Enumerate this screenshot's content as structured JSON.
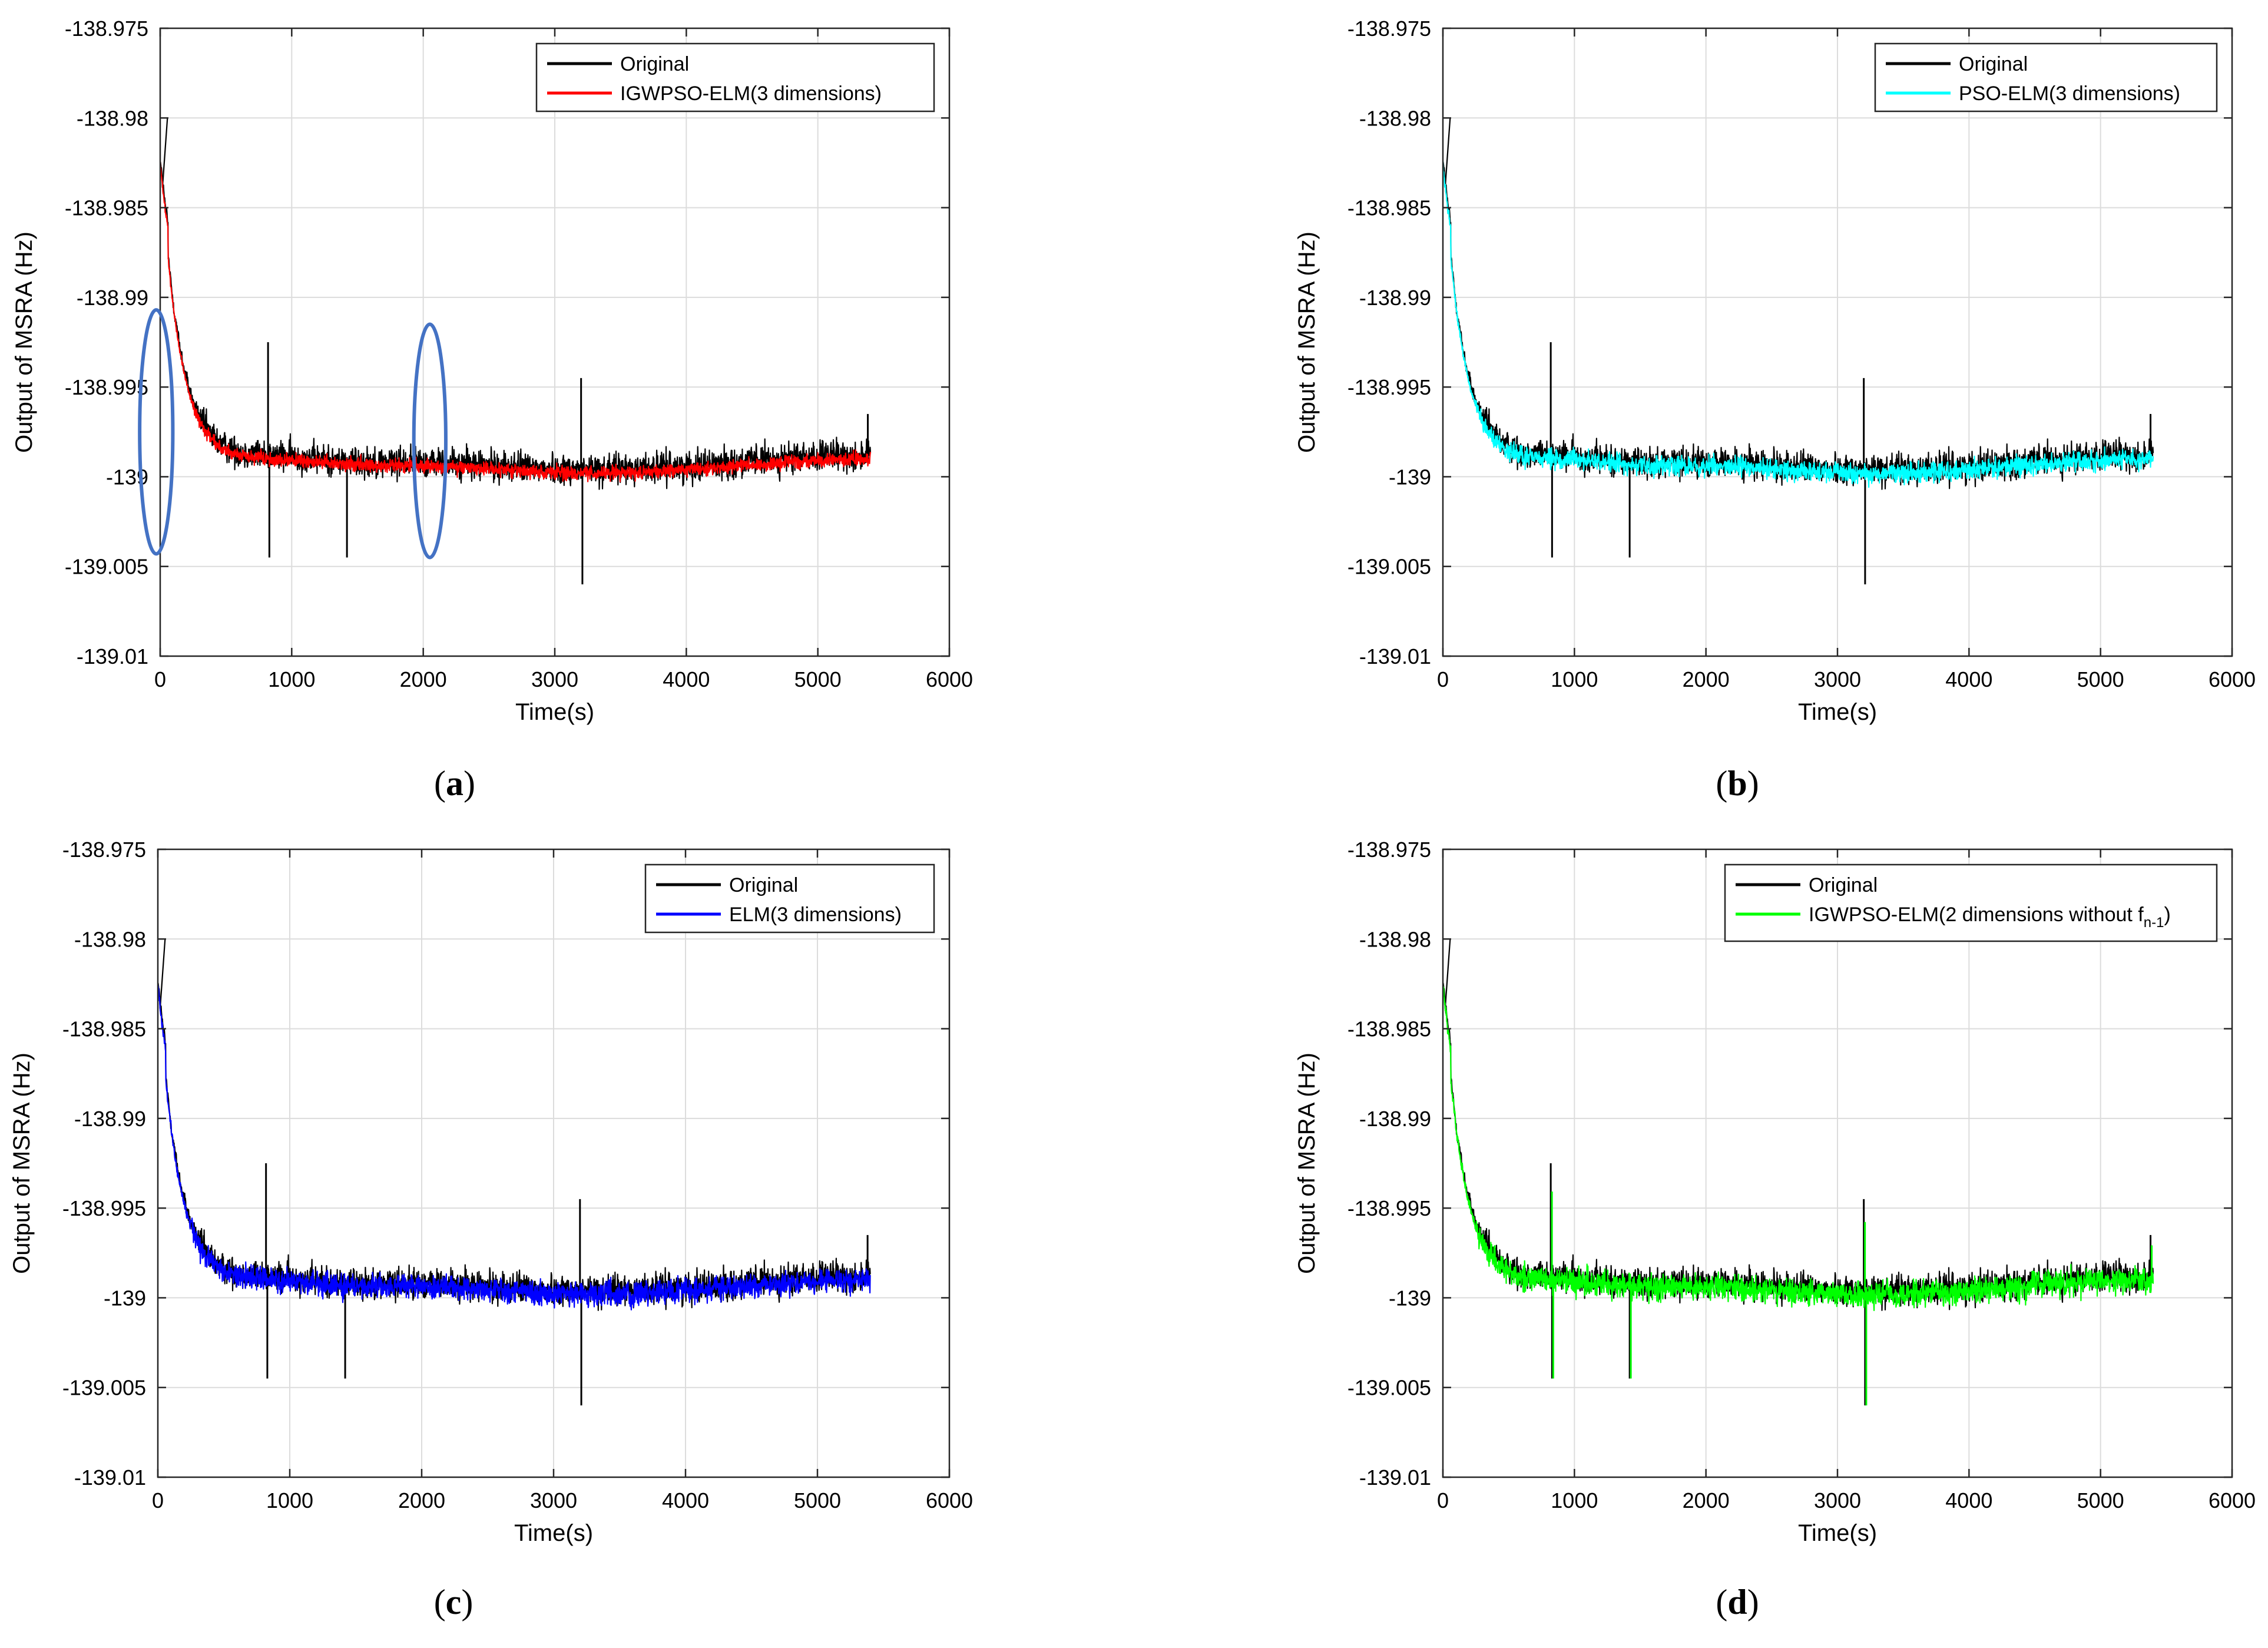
{
  "colors": {
    "original": "#000000",
    "grid": "#dcdcdc",
    "axis": "#262626",
    "annotation": "#4472c4"
  },
  "chart_data": [
    {
      "type": "line",
      "panel": "a",
      "caption_letter": "a",
      "title": "",
      "xlabel": "Time(s)",
      "ylabel": "Output of MSRA (Hz)",
      "xlim": [
        0,
        6000
      ],
      "ylim": [
        -139.01,
        -138.975
      ],
      "xticks": [
        0,
        1000,
        2000,
        3000,
        4000,
        5000,
        6000
      ],
      "xtick_labels": [
        "0",
        "1000",
        "2000",
        "3000",
        "4000",
        "5000",
        "6000"
      ],
      "yticks": [
        -138.975,
        -138.98,
        -138.985,
        -138.99,
        -138.995,
        -139,
        -139.005,
        -139.01
      ],
      "ytick_labels": [
        "-138.975",
        "-138.98",
        "-138.985",
        "-138.99",
        "-138.995",
        "-139",
        "-139.005",
        "-139.01"
      ],
      "grid": true,
      "legend_position": "top-right",
      "series": [
        {
          "name": "Original",
          "color": "#000000",
          "kind": "original"
        },
        {
          "name": "IGWPSO-ELM(3 dimensions)",
          "color": "#ff0000",
          "kind": "model",
          "band": 0.00065
        }
      ],
      "annotations": [
        {
          "shape": "ellipse",
          "center": [
            -30,
            -138.9975
          ],
          "half_width": 280,
          "half_height": 0.0068
        },
        {
          "shape": "ellipse",
          "center": [
            2050,
            -138.998
          ],
          "half_width": 270,
          "half_height": 0.0065
        }
      ]
    },
    {
      "type": "line",
      "panel": "b",
      "caption_letter": "b",
      "title": "",
      "xlabel": "Time(s)",
      "ylabel": "Output of MSRA (Hz)",
      "xlim": [
        0,
        6000
      ],
      "ylim": [
        -139.01,
        -138.975
      ],
      "xticks": [
        0,
        1000,
        2000,
        3000,
        4000,
        5000,
        6000
      ],
      "xtick_labels": [
        "0",
        "1000",
        "2000",
        "3000",
        "4000",
        "5000",
        "6000"
      ],
      "yticks": [
        -138.975,
        -138.98,
        -138.985,
        -138.99,
        -138.995,
        -139,
        -139.005,
        -139.01
      ],
      "ytick_labels": [
        "-138.975",
        "-138.98",
        "-138.985",
        "-138.99",
        "-138.995",
        "-139",
        "-139.005",
        "-139.01"
      ],
      "grid": true,
      "legend_position": "top-right",
      "series": [
        {
          "name": "Original",
          "color": "#000000",
          "kind": "original"
        },
        {
          "name": "PSO-ELM(3 dimensions)",
          "color": "#00ffff",
          "kind": "model",
          "band": 0.0009
        }
      ],
      "annotations": []
    },
    {
      "type": "line",
      "panel": "c",
      "caption_letter": "c",
      "title": "",
      "xlabel": "Time(s)",
      "ylabel": "Output of MSRA (Hz)",
      "xlim": [
        0,
        6000
      ],
      "ylim": [
        -139.01,
        -138.975
      ],
      "xticks": [
        0,
        1000,
        2000,
        3000,
        4000,
        5000,
        6000
      ],
      "xtick_labels": [
        "0",
        "1000",
        "2000",
        "3000",
        "4000",
        "5000",
        "6000"
      ],
      "yticks": [
        -138.975,
        -138.98,
        -138.985,
        -138.99,
        -138.995,
        -139,
        -139.005,
        -139.01
      ],
      "ytick_labels": [
        "-138.975",
        "-138.98",
        "-138.985",
        "-138.99",
        "-138.995",
        "-139",
        "-139.005",
        "-139.01"
      ],
      "grid": true,
      "legend_position": "top-right",
      "series": [
        {
          "name": "Original",
          "color": "#000000",
          "kind": "original"
        },
        {
          "name": "ELM(3 dimensions)",
          "color": "#0000ff",
          "kind": "model",
          "band": 0.0011
        }
      ],
      "annotations": []
    },
    {
      "type": "line",
      "panel": "d",
      "caption_letter": "d",
      "title": "",
      "xlabel": "Time(s)",
      "ylabel": "Output of MSRA (Hz)",
      "xlim": [
        0,
        6000
      ],
      "ylim": [
        -139.01,
        -138.975
      ],
      "xticks": [
        0,
        1000,
        2000,
        3000,
        4000,
        5000,
        6000
      ],
      "xtick_labels": [
        "0",
        "1000",
        "2000",
        "3000",
        "4000",
        "5000",
        "6000"
      ],
      "yticks": [
        -138.975,
        -138.98,
        -138.985,
        -138.99,
        -138.995,
        -139,
        -139.005,
        -139.01
      ],
      "ytick_labels": [
        "-138.975",
        "-138.98",
        "-138.985",
        "-138.99",
        "-138.995",
        "-139",
        "-139.005",
        "-139.01"
      ],
      "grid": true,
      "legend_position": "top-right",
      "series": [
        {
          "name": "Original",
          "color": "#000000",
          "kind": "original"
        },
        {
          "name": "IGWPSO-ELM(2 dimensions without f",
          "name_subscript": "n-1",
          "name_suffix": ")",
          "color": "#00ff00",
          "kind": "model",
          "band": 0.0012
        }
      ],
      "annotations": []
    }
  ],
  "original_signal": {
    "description_values": {
      "start_value": -138.982,
      "peak_value": -138.98,
      "steady_mean": -138.9992,
      "steady_noise_amplitude": 0.0011,
      "decay_time_constant_s": 150,
      "end_time_s": 5400
    },
    "spikes": [
      {
        "x": 820,
        "y": -138.9925
      },
      {
        "x": 830,
        "y": -139.0045
      },
      {
        "x": 1420,
        "y": -139.0045
      },
      {
        "x": 3210,
        "y": -139.006
      },
      {
        "x": 3200,
        "y": -138.9945
      },
      {
        "x": 5380,
        "y": -138.9965
      }
    ]
  }
}
